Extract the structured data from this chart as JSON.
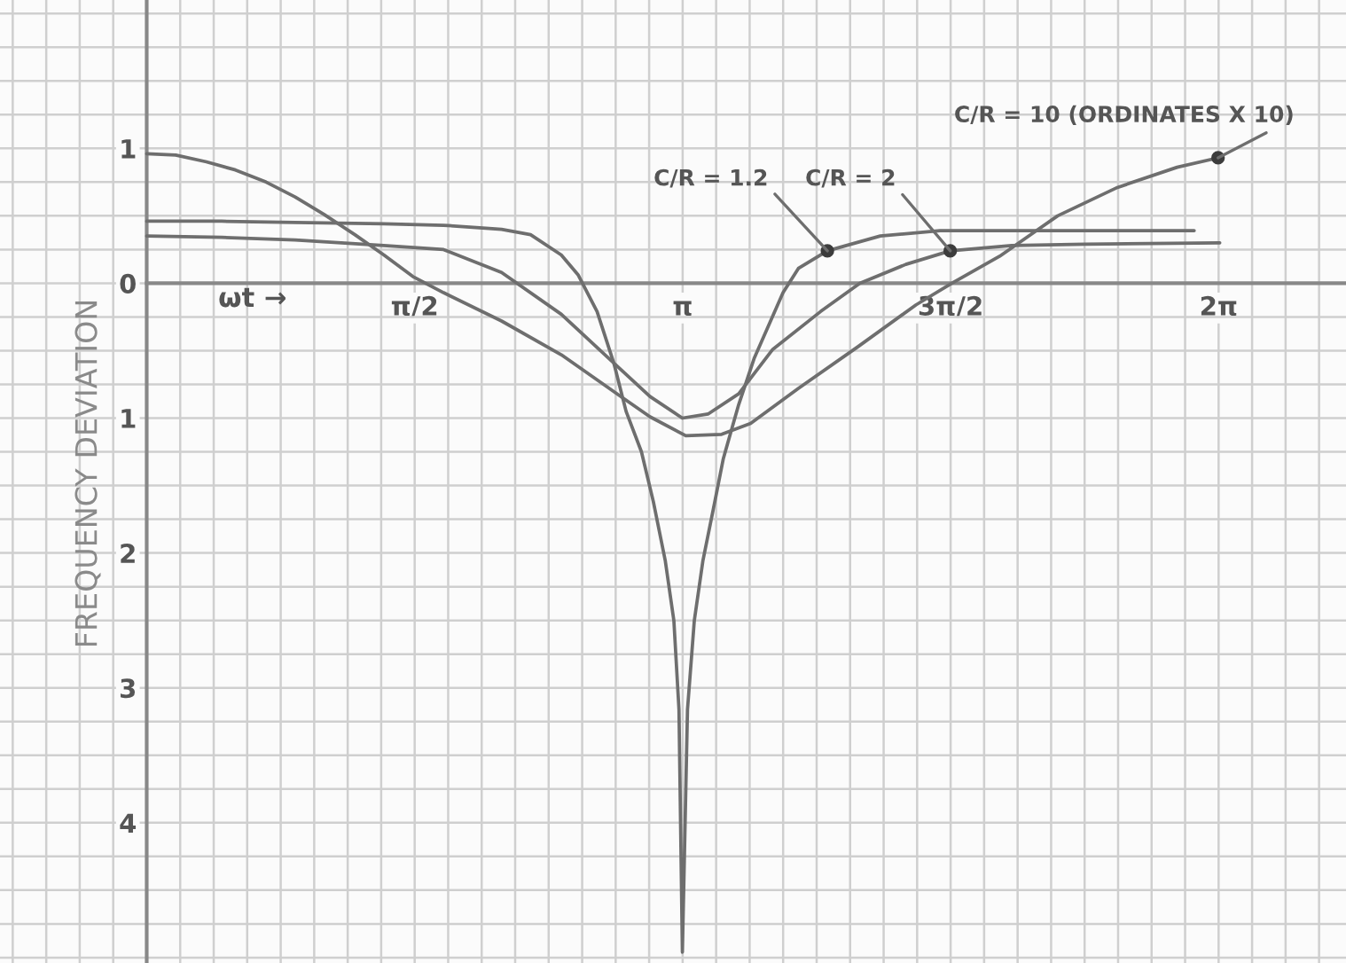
{
  "chart_data": {
    "type": "line",
    "xlabel": "ωt →",
    "ylabel": "FREQUENCY DEVIATION",
    "xlim": [
      -0.86,
      7.03
    ],
    "ylim": [
      -5.04,
      2.1
    ],
    "xticks": [
      {
        "value": -0.7854,
        "label": null
      },
      {
        "value": -0.589,
        "label": null
      },
      {
        "value": -0.3927,
        "label": null
      },
      {
        "value": -0.1963,
        "label": null
      },
      {
        "value": 0,
        "label": null
      },
      {
        "value": 0.1963,
        "label": null
      },
      {
        "value": 0.3927,
        "label": null
      },
      {
        "value": 0.589,
        "label": null
      },
      {
        "value": 0.7854,
        "label": null
      },
      {
        "value": 0.9817,
        "label": null
      },
      {
        "value": 1.1781,
        "label": null
      },
      {
        "value": 1.3744,
        "label": null
      },
      {
        "value": 1.5708,
        "label": "π/2"
      },
      {
        "value": 1.7671,
        "label": null
      },
      {
        "value": 1.9635,
        "label": null
      },
      {
        "value": 2.1598,
        "label": null
      },
      {
        "value": 2.3562,
        "label": null
      },
      {
        "value": 2.5525,
        "label": null
      },
      {
        "value": 2.7489,
        "label": null
      },
      {
        "value": 2.9452,
        "label": null
      },
      {
        "value": 3.1416,
        "label": "π"
      },
      {
        "value": 3.3379,
        "label": null
      },
      {
        "value": 3.5343,
        "label": null
      },
      {
        "value": 3.7306,
        "label": null
      },
      {
        "value": 3.927,
        "label": null
      },
      {
        "value": 4.1233,
        "label": null
      },
      {
        "value": 4.3197,
        "label": null
      },
      {
        "value": 4.516,
        "label": null
      },
      {
        "value": 4.7124,
        "label": "3π/2"
      },
      {
        "value": 4.9087,
        "label": null
      },
      {
        "value": 5.1051,
        "label": null
      },
      {
        "value": 5.3014,
        "label": null
      },
      {
        "value": 5.4978,
        "label": null
      },
      {
        "value": 5.6941,
        "label": null
      },
      {
        "value": 5.8905,
        "label": null
      },
      {
        "value": 6.0868,
        "label": null
      },
      {
        "value": 6.2832,
        "label": "2π"
      },
      {
        "value": 6.4795,
        "label": null
      },
      {
        "value": 6.6759,
        "label": null
      },
      {
        "value": 6.8722,
        "label": null
      }
    ],
    "yticks": [
      {
        "value": -5,
        "label": null
      },
      {
        "value": -4.75,
        "label": null
      },
      {
        "value": -4.5,
        "label": null
      },
      {
        "value": -4.25,
        "label": null
      },
      {
        "value": -4,
        "label": "4"
      },
      {
        "value": -3.75,
        "label": null
      },
      {
        "value": -3.5,
        "label": null
      },
      {
        "value": -3.25,
        "label": null
      },
      {
        "value": -3,
        "label": "3"
      },
      {
        "value": -2.75,
        "label": null
      },
      {
        "value": -2.5,
        "label": null
      },
      {
        "value": -2.25,
        "label": null
      },
      {
        "value": -2,
        "label": "2"
      },
      {
        "value": -1.75,
        "label": null
      },
      {
        "value": -1.5,
        "label": null
      },
      {
        "value": -1.25,
        "label": null
      },
      {
        "value": -1,
        "label": "1"
      },
      {
        "value": -0.75,
        "label": null
      },
      {
        "value": -0.5,
        "label": null
      },
      {
        "value": -0.25,
        "label": null
      },
      0,
      {
        "value": 0.25,
        "label": null
      },
      {
        "value": 0.5,
        "label": null
      },
      {
        "value": 0.75,
        "label": null
      },
      1,
      {
        "value": 1.25,
        "label": null
      },
      {
        "value": 1.5,
        "label": null
      },
      {
        "value": 1.75,
        "label": null
      },
      {
        "value": 2,
        "label": null
      }
    ],
    "grid": true,
    "series": [
      {
        "color": "#6e6e6e",
        "x": [
          0,
          0.44,
          0.87,
          1.39,
          1.74,
          2.08,
          2.25,
          2.43,
          2.53,
          2.64,
          2.74,
          2.81,
          2.9,
          2.97,
          3.04,
          3.09,
          3.12,
          3.14,
          3.17,
          3.21,
          3.26,
          3.33,
          3.38,
          3.47,
          3.56,
          3.73,
          3.82,
          3.99,
          4.3,
          4.65,
          5.5,
          6.14
        ],
        "values": [
          0.46,
          0.46,
          0.45,
          0.44,
          0.43,
          0.4,
          0.36,
          0.21,
          0.06,
          -0.21,
          -0.6,
          -0.95,
          -1.25,
          -1.62,
          -2.06,
          -2.5,
          -3.16,
          -4.96,
          -3.16,
          -2.5,
          -2.06,
          -1.62,
          -1.3,
          -0.9,
          -0.56,
          -0.07,
          0.11,
          0.24,
          0.35,
          0.39,
          0.39,
          0.39
        ]
      },
      {
        "color": "#6e6e6e",
        "x": [
          0,
          0.44,
          0.87,
          1.39,
          1.74,
          2.08,
          2.43,
          2.78,
          2.95,
          3.14,
          3.29,
          3.47,
          3.67,
          3.95,
          4.18,
          4.45,
          4.71,
          5.07,
          5.5,
          6.29
        ],
        "values": [
          0.35,
          0.34,
          0.32,
          0.28,
          0.25,
          0.08,
          -0.23,
          -0.64,
          -0.84,
          -1.0,
          -0.97,
          -0.82,
          -0.49,
          -0.21,
          0.0,
          0.14,
          0.24,
          0.28,
          0.29,
          0.3
        ]
      },
      {
        "color": "#6e6e6e",
        "x": [
          0,
          0.17,
          0.35,
          0.52,
          0.7,
          0.87,
          1.04,
          1.22,
          1.39,
          1.56,
          1.74,
          2.08,
          2.43,
          2.78,
          2.95,
          3.16,
          3.37,
          3.54,
          3.82,
          4.17,
          4.51,
          4.72,
          5.0,
          5.34,
          5.69,
          6.04,
          6.28
        ],
        "values": [
          0.96,
          0.95,
          0.9,
          0.84,
          0.75,
          0.64,
          0.51,
          0.36,
          0.21,
          0.05,
          -0.07,
          -0.28,
          -0.53,
          -0.84,
          -0.99,
          -1.13,
          -1.12,
          -1.04,
          -0.78,
          -0.47,
          -0.16,
          0.0,
          0.2,
          0.5,
          0.71,
          0.86,
          0.93
        ]
      }
    ],
    "annotations": [
      {
        "text": "C/R = 1.2",
        "x": 3.99,
        "y": 0.24
      },
      {
        "text": "C/R = 2",
        "x": 4.71,
        "y": 0.24
      },
      {
        "text": "C/R = 10 (ORDINATES X 10)",
        "x": 6.28,
        "y": 0.93
      }
    ]
  }
}
